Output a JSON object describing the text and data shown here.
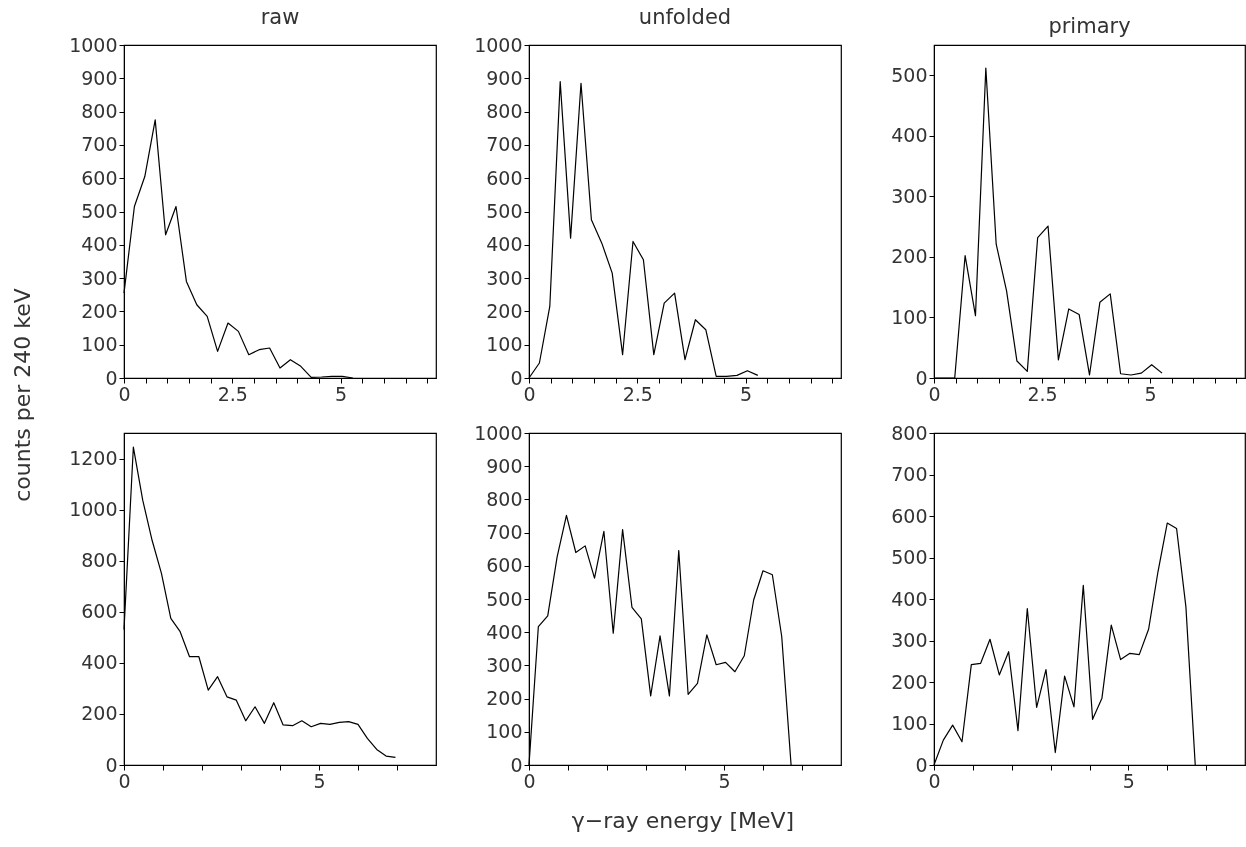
{
  "chart_data": [
    {
      "type": "line",
      "title": "raw",
      "ylabel": "counts per 240 keV",
      "x": [
        0,
        0.24,
        0.48,
        0.72,
        0.96,
        1.2,
        1.44,
        1.68,
        1.92,
        2.16,
        2.4,
        2.64,
        2.88,
        3.12,
        3.36,
        3.6,
        3.84,
        4.08,
        4.32,
        4.56,
        4.8,
        5.04,
        5.28
      ],
      "values": [
        255,
        515,
        605,
        775,
        430,
        515,
        290,
        220,
        185,
        80,
        165,
        140,
        70,
        85,
        90,
        30,
        55,
        35,
        2,
        3,
        5,
        5,
        0
      ],
      "color": "#000000",
      "xlim": [
        0,
        7.2
      ],
      "ylim": [
        0,
        1000
      ],
      "xticks": [
        0,
        {
          "value": 0.5,
          "label": null
        },
        {
          "value": 1,
          "label": null
        },
        {
          "value": 1.5,
          "label": null
        },
        {
          "value": 2,
          "label": null
        },
        2.5,
        {
          "value": 3,
          "label": null
        },
        {
          "value": 3.5,
          "label": null
        },
        {
          "value": 4,
          "label": null
        },
        {
          "value": 4.5,
          "label": null
        },
        5,
        {
          "value": 5.5,
          "label": null
        },
        {
          "value": 6,
          "label": null
        },
        {
          "value": 6.5,
          "label": null
        },
        {
          "value": 7,
          "label": null
        }
      ],
      "yticks": [
        0,
        100,
        200,
        300,
        400,
        500,
        600,
        700,
        800,
        900,
        1000
      ],
      "grid": false,
      "marker": "none",
      "line_style": "solid"
    },
    {
      "type": "line",
      "title": "unfolded",
      "x": [
        0,
        0.24,
        0.48,
        0.72,
        0.96,
        1.2,
        1.44,
        1.68,
        1.92,
        2.16,
        2.4,
        2.64,
        2.88,
        3.12,
        3.36,
        3.6,
        3.84,
        4.08,
        4.32,
        4.56,
        4.8,
        5.04,
        5.28
      ],
      "values": [
        0,
        45,
        215,
        890,
        420,
        885,
        475,
        405,
        315,
        70,
        410,
        355,
        70,
        225,
        255,
        55,
        175,
        145,
        5,
        5,
        8,
        22,
        8
      ],
      "color": "#000000",
      "xlim": [
        0,
        7.2
      ],
      "ylim": [
        0,
        1000
      ],
      "xticks": [
        0,
        {
          "value": 0.5,
          "label": null
        },
        {
          "value": 1,
          "label": null
        },
        {
          "value": 1.5,
          "label": null
        },
        {
          "value": 2,
          "label": null
        },
        2.5,
        {
          "value": 3,
          "label": null
        },
        {
          "value": 3.5,
          "label": null
        },
        {
          "value": 4,
          "label": null
        },
        {
          "value": 4.5,
          "label": null
        },
        5,
        {
          "value": 5.5,
          "label": null
        },
        {
          "value": 6,
          "label": null
        },
        {
          "value": 6.5,
          "label": null
        },
        {
          "value": 7,
          "label": null
        }
      ],
      "yticks": [
        0,
        100,
        200,
        300,
        400,
        500,
        600,
        700,
        800,
        900,
        1000
      ],
      "grid": false,
      "marker": "none",
      "line_style": "solid"
    },
    {
      "type": "line",
      "title": "primary",
      "x": [
        0,
        0.24,
        0.48,
        0.72,
        0.96,
        1.2,
        1.44,
        1.68,
        1.92,
        2.16,
        2.4,
        2.64,
        2.88,
        3.12,
        3.36,
        3.6,
        3.84,
        4.08,
        4.32,
        4.56,
        4.8,
        5.04,
        5.28
      ],
      "values": [
        0,
        0,
        0,
        202,
        103,
        512,
        221,
        144,
        28,
        11,
        232,
        251,
        30,
        114,
        105,
        5,
        125,
        139,
        7,
        5,
        8,
        22,
        8
      ],
      "color": "#000000",
      "xlim": [
        0,
        7.2
      ],
      "ylim": [
        0,
        550
      ],
      "xticks": [
        0,
        {
          "value": 0.5,
          "label": null
        },
        {
          "value": 1,
          "label": null
        },
        {
          "value": 1.5,
          "label": null
        },
        {
          "value": 2,
          "label": null
        },
        2.5,
        {
          "value": 3,
          "label": null
        },
        {
          "value": 3.5,
          "label": null
        },
        {
          "value": 4,
          "label": null
        },
        {
          "value": 4.5,
          "label": null
        },
        5,
        {
          "value": 5.5,
          "label": null
        },
        {
          "value": 6,
          "label": null
        },
        {
          "value": 6.5,
          "label": null
        },
        {
          "value": 7,
          "label": null
        }
      ],
      "yticks": [
        0,
        100,
        200,
        300,
        400,
        500
      ],
      "grid": false,
      "marker": "none",
      "line_style": "solid"
    },
    {
      "type": "line",
      "x": [
        0,
        0.24,
        0.48,
        0.72,
        0.96,
        1.2,
        1.44,
        1.68,
        1.92,
        2.16,
        2.4,
        2.64,
        2.88,
        3.12,
        3.36,
        3.6,
        3.84,
        4.08,
        4.32,
        4.56,
        4.8,
        5.04,
        5.28,
        5.52,
        5.76,
        6.0,
        6.24,
        6.48,
        6.72,
        6.96
      ],
      "values": [
        530,
        1245,
        1037,
        880,
        750,
        574,
        522,
        424,
        424,
        293,
        346,
        267,
        254,
        173,
        228,
        163,
        244,
        157,
        154,
        173,
        150,
        163,
        159,
        167,
        170,
        159,
        104,
        61,
        35,
        30
      ],
      "color": "#000000",
      "xlim": [
        0,
        8
      ],
      "ylim": [
        0,
        1300
      ],
      "xticks": [
        0,
        {
          "value": 1,
          "label": null
        },
        {
          "value": 2,
          "label": null
        },
        {
          "value": 3,
          "label": null
        },
        {
          "value": 4,
          "label": null
        },
        5,
        {
          "value": 6,
          "label": null
        },
        {
          "value": 7,
          "label": null
        }
      ],
      "yticks": [
        0,
        200,
        400,
        600,
        800,
        1000,
        1200
      ],
      "grid": false,
      "marker": "none",
      "line_style": "solid"
    },
    {
      "type": "line",
      "xlabel": "γ−ray energy [MeV]",
      "x": [
        0,
        0.24,
        0.48,
        0.72,
        0.96,
        1.2,
        1.44,
        1.68,
        1.92,
        2.16,
        2.4,
        2.64,
        2.88,
        3.12,
        3.36,
        3.6,
        3.84,
        4.08,
        4.32,
        4.56,
        4.8,
        5.04,
        5.28,
        5.52,
        5.76,
        6.0,
        6.24,
        6.48,
        6.72
      ],
      "values": [
        0,
        417,
        449,
        626,
        752,
        640,
        660,
        563,
        704,
        397,
        709,
        475,
        440,
        208,
        389,
        208,
        646,
        213,
        246,
        392,
        302,
        309,
        281,
        329,
        497,
        585,
        573,
        387,
        0
      ],
      "color": "#000000",
      "xlim": [
        0,
        8
      ],
      "ylim": [
        0,
        1000
      ],
      "xticks": [
        0,
        {
          "value": 1,
          "label": null
        },
        {
          "value": 2,
          "label": null
        },
        {
          "value": 3,
          "label": null
        },
        {
          "value": 4,
          "label": null
        },
        5,
        {
          "value": 6,
          "label": null
        },
        {
          "value": 7,
          "label": null
        }
      ],
      "yticks": [
        0,
        100,
        200,
        300,
        400,
        500,
        600,
        700,
        800,
        900,
        1000
      ],
      "grid": false,
      "marker": "none",
      "line_style": "solid"
    },
    {
      "type": "line",
      "x": [
        0,
        0.24,
        0.48,
        0.72,
        0.96,
        1.2,
        1.44,
        1.68,
        1.92,
        2.16,
        2.4,
        2.64,
        2.88,
        3.12,
        3.36,
        3.6,
        3.84,
        4.08,
        4.32,
        4.56,
        4.8,
        5.04,
        5.28,
        5.52,
        5.76,
        6.0,
        6.24,
        6.48,
        6.72
      ],
      "values": [
        0,
        60,
        96,
        56,
        242,
        245,
        303,
        217,
        273,
        83,
        377,
        139,
        230,
        30,
        214,
        140,
        433,
        110,
        161,
        337,
        254,
        269,
        266,
        327,
        465,
        583,
        570,
        381,
        0
      ],
      "color": "#000000",
      "xlim": [
        0,
        8
      ],
      "ylim": [
        0,
        800
      ],
      "xticks": [
        0,
        {
          "value": 1,
          "label": null
        },
        {
          "value": 2,
          "label": null
        },
        {
          "value": 3,
          "label": null
        },
        {
          "value": 4,
          "label": null
        },
        5,
        {
          "value": 6,
          "label": null
        },
        {
          "value": 7,
          "label": null
        }
      ],
      "yticks": [
        0,
        100,
        200,
        300,
        400,
        500,
        600,
        700,
        800
      ],
      "grid": false,
      "marker": "none",
      "line_style": "solid"
    }
  ]
}
